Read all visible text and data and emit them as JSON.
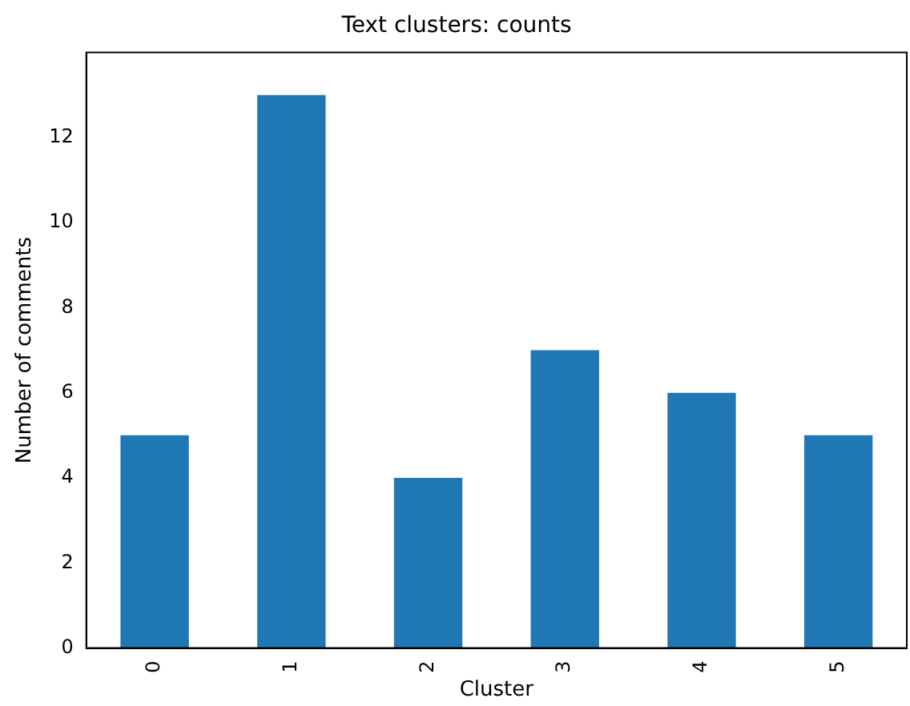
{
  "chart_data": {
    "type": "bar",
    "title": "Text clusters: counts",
    "xlabel": "Cluster",
    "ylabel": "Number of comments",
    "categories": [
      "0",
      "1",
      "2",
      "3",
      "4",
      "5"
    ],
    "values": [
      5,
      13,
      4,
      7,
      6,
      5
    ],
    "color": "#1f77b4",
    "ylim": [
      0,
      14
    ],
    "yticks": [
      0,
      2,
      4,
      6,
      8,
      10,
      12
    ],
    "grid": false,
    "legend": false
  }
}
